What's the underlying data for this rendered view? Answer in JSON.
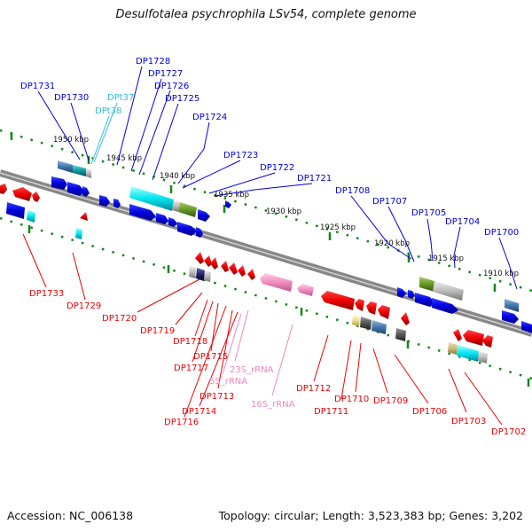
{
  "title": "Desulfotalea psychrophila LSv54, complete genome",
  "accession_text": "Accession: NC_006138",
  "summary_text": "Topology: circular; Length: 3,523,383 bp; Genes: 3,202",
  "colors": {
    "forward_gene": "#0000dd",
    "reverse_gene": "#ee0000",
    "trna": "#33bbdd",
    "rrna": "#ee88bb",
    "backbone": "#888888",
    "ruler_dots": "#118811"
  },
  "scale_labels": [
    "1950 kbp",
    "1945 kbp",
    "1940 kbp",
    "1935 kbp",
    "1930 kbp",
    "1925 kbp",
    "1920 kbp",
    "1915 kbp",
    "1910 kbp"
  ],
  "top_labels": [
    "DP1731",
    "DP1730",
    "DPt37",
    "DPt38",
    "DP1728",
    "DP1727",
    "DP1726",
    "DP1725",
    "DP1724",
    "DP1723",
    "DP1722",
    "DP1721",
    "DP1708",
    "DP1707",
    "DP1705",
    "DP1704",
    "DP1700"
  ],
  "bottom_labels": [
    "DP1733",
    "DP1729",
    "DP1720",
    "DP1719",
    "DP1718",
    "DP1717",
    "DP1715",
    "DP1713",
    "DP1714",
    "DP1716",
    "23S_rRNA",
    "5S_rRNA",
    "16S_rRNA",
    "DP1712",
    "DP1711",
    "DP1710",
    "DP1709",
    "DP1706",
    "DP1703",
    "DP1702"
  ]
}
